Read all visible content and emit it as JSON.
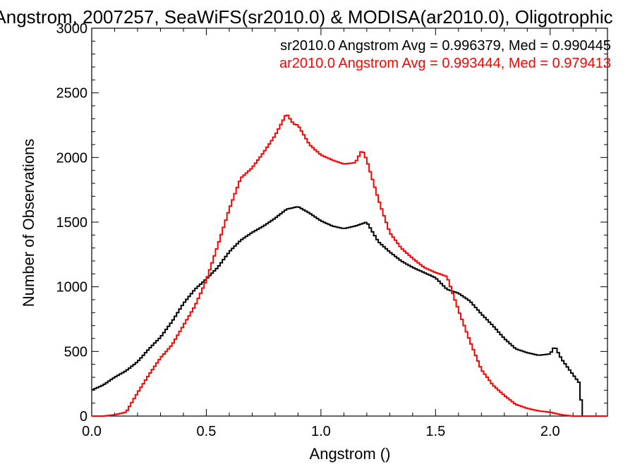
{
  "chart_data": {
    "type": "line",
    "title": "Angstrom, 2007257, SeaWiFS(sr2010.0) & MODISA(ar2010.0), Oligotrophic",
    "xlabel": "Angstrom ()",
    "ylabel": "Number of Observations",
    "xlim": [
      0.0,
      2.25
    ],
    "ylim": [
      0,
      3000
    ],
    "xticks": [
      0.0,
      0.5,
      1.0,
      1.5,
      2.0
    ],
    "xtick_labels": [
      "0.0",
      "0.5",
      "1.0",
      "1.5",
      "2.0"
    ],
    "yticks": [
      0,
      500,
      1000,
      1500,
      2000,
      2500,
      3000
    ],
    "ytick_labels": [
      "0",
      "500",
      "1000",
      "1500",
      "2000",
      "2500",
      "3000"
    ],
    "grid": false,
    "legend_placement": "top-right",
    "series": [
      {
        "name": "sr2010.0",
        "legend": "sr2010.0 Angstrom Avg = 0.996379, Med = 0.990445",
        "color": "#000000",
        "points": [
          [
            0.0,
            200
          ],
          [
            0.05,
            240
          ],
          [
            0.1,
            300
          ],
          [
            0.15,
            350
          ],
          [
            0.2,
            420
          ],
          [
            0.25,
            520
          ],
          [
            0.3,
            610
          ],
          [
            0.35,
            730
          ],
          [
            0.4,
            870
          ],
          [
            0.45,
            980
          ],
          [
            0.5,
            1060
          ],
          [
            0.55,
            1150
          ],
          [
            0.6,
            1270
          ],
          [
            0.65,
            1360
          ],
          [
            0.7,
            1420
          ],
          [
            0.75,
            1470
          ],
          [
            0.8,
            1530
          ],
          [
            0.85,
            1600
          ],
          [
            0.9,
            1620
          ],
          [
            0.95,
            1570
          ],
          [
            1.0,
            1510
          ],
          [
            1.05,
            1470
          ],
          [
            1.1,
            1450
          ],
          [
            1.15,
            1470
          ],
          [
            1.2,
            1500
          ],
          [
            1.25,
            1350
          ],
          [
            1.3,
            1270
          ],
          [
            1.35,
            1200
          ],
          [
            1.4,
            1150
          ],
          [
            1.45,
            1110
          ],
          [
            1.5,
            1070
          ],
          [
            1.55,
            980
          ],
          [
            1.6,
            950
          ],
          [
            1.65,
            890
          ],
          [
            1.7,
            790
          ],
          [
            1.75,
            700
          ],
          [
            1.8,
            600
          ],
          [
            1.85,
            520
          ],
          [
            1.9,
            490
          ],
          [
            1.95,
            470
          ],
          [
            2.0,
            480
          ],
          [
            2.02,
            540
          ],
          [
            2.05,
            440
          ],
          [
            2.1,
            320
          ],
          [
            2.13,
            250
          ],
          [
            2.14,
            0
          ],
          [
            2.25,
            0
          ]
        ]
      },
      {
        "name": "ar2010.0",
        "legend": "ar2010.0 Angstrom Avg = 0.993444, Med = 0.979413",
        "color": "#ff0000",
        "points": [
          [
            0.0,
            0
          ],
          [
            0.05,
            0
          ],
          [
            0.1,
            10
          ],
          [
            0.15,
            30
          ],
          [
            0.2,
            180
          ],
          [
            0.25,
            320
          ],
          [
            0.3,
            450
          ],
          [
            0.35,
            550
          ],
          [
            0.4,
            700
          ],
          [
            0.45,
            850
          ],
          [
            0.5,
            1050
          ],
          [
            0.55,
            1320
          ],
          [
            0.6,
            1600
          ],
          [
            0.65,
            1840
          ],
          [
            0.7,
            1920
          ],
          [
            0.75,
            2040
          ],
          [
            0.8,
            2170
          ],
          [
            0.85,
            2340
          ],
          [
            0.88,
            2260
          ],
          [
            0.9,
            2250
          ],
          [
            0.95,
            2100
          ],
          [
            1.0,
            2020
          ],
          [
            1.05,
            1980
          ],
          [
            1.1,
            1950
          ],
          [
            1.15,
            1960
          ],
          [
            1.18,
            2060
          ],
          [
            1.2,
            1980
          ],
          [
            1.25,
            1680
          ],
          [
            1.3,
            1420
          ],
          [
            1.35,
            1300
          ],
          [
            1.4,
            1220
          ],
          [
            1.45,
            1150
          ],
          [
            1.5,
            1110
          ],
          [
            1.55,
            1080
          ],
          [
            1.6,
            820
          ],
          [
            1.65,
            580
          ],
          [
            1.7,
            360
          ],
          [
            1.75,
            240
          ],
          [
            1.8,
            160
          ],
          [
            1.85,
            90
          ],
          [
            1.9,
            60
          ],
          [
            1.95,
            40
          ],
          [
            2.0,
            30
          ],
          [
            2.05,
            10
          ],
          [
            2.1,
            0
          ],
          [
            2.25,
            0
          ]
        ]
      }
    ]
  }
}
